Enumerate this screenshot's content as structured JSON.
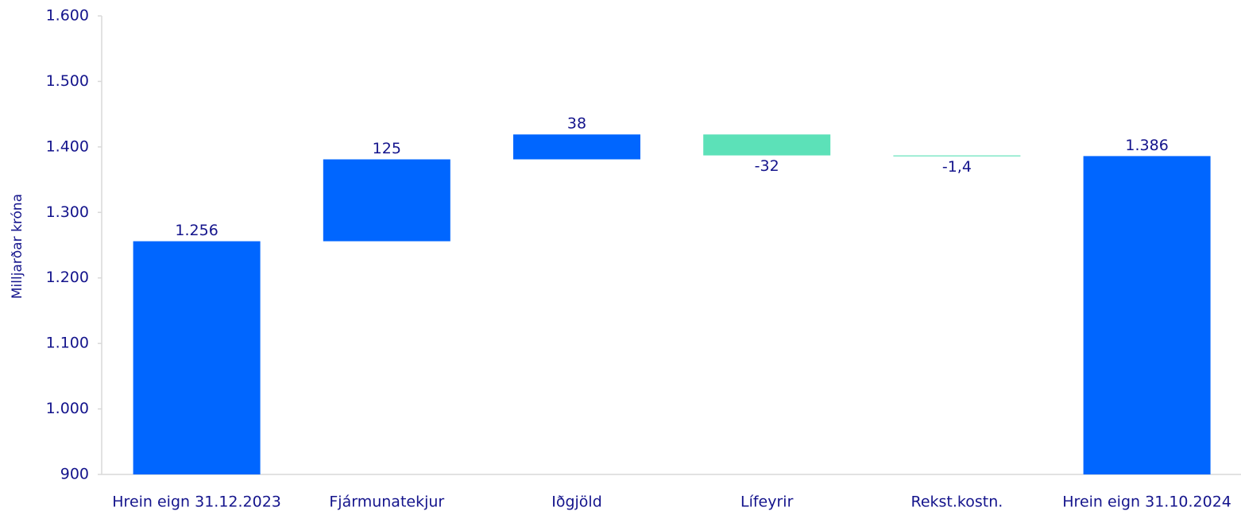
{
  "chart_data": {
    "type": "waterfall",
    "y_label": "Milljarðar króna",
    "categories": [
      "Hrein eign 31.12.2023",
      "Fjármunatekjur",
      "Iðgjöld",
      "Lífeyrir",
      "Rekst.kostn.",
      "Hrein eign 31.10.2024"
    ],
    "values": [
      1256,
      125,
      38,
      -32,
      -1.4,
      1386
    ],
    "value_labels": [
      "1.256",
      "125",
      "38",
      "-32",
      "-1,4",
      "1.386"
    ],
    "color": "#0066ff",
    "negative_color": "#5ce1b8",
    "ylim": [
      900,
      1600
    ],
    "yticks": [
      900,
      {
        "value": 1000,
        "label": "1.000"
      },
      {
        "value": 1100,
        "label": "1.100"
      },
      {
        "value": 1200,
        "label": "1.200"
      },
      {
        "value": 1300,
        "label": "1.300"
      },
      {
        "value": 1400,
        "label": "1.400"
      },
      {
        "value": 1500,
        "label": "1.500"
      },
      {
        "value": 1600,
        "label": "1.600"
      }
    ]
  }
}
